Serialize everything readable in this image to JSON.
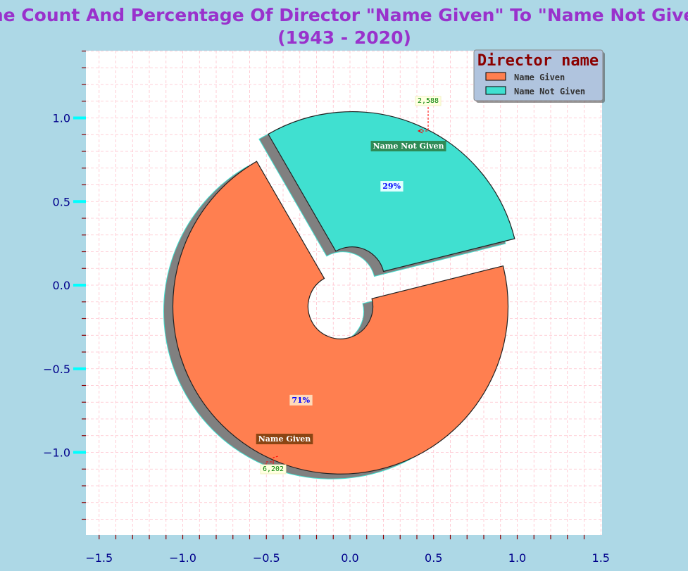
{
  "chart_data": {
    "type": "pie",
    "title_lines": [
      "The Count And Percentage Of Director \"Name Given\" To \"Name Not Given\"",
      "(1943 - 2020)"
    ],
    "legend": {
      "title": "Director name",
      "placement": "top-right"
    },
    "slices": [
      {
        "label": "Name Given",
        "value": 6202,
        "count_label": "6,202",
        "percent_label": "71%",
        "color": "#ff7f50"
      },
      {
        "label": "Name Not Given",
        "value": 2588,
        "count_label": "2,588",
        "percent_label": "29%",
        "color": "#40e0d0"
      }
    ],
    "donut_hole": true,
    "exploded": true,
    "shadow": true,
    "x_ticks": [
      "−1.5",
      "−1.0",
      "−0.5",
      "0.0",
      "0.5",
      "1.0",
      "1.5"
    ],
    "y_ticks": [
      "1.0",
      "0.5",
      "0.0",
      "−0.5",
      "−1.0"
    ],
    "grid": true,
    "colors": {
      "background": "#add8e6",
      "plot_background": "#ffffff",
      "grid": "#ffc0cb",
      "title": "#9932cc",
      "tick_mark": "#00ffff",
      "minor_tick": "#8b0000",
      "legend_background": "#b0c4de",
      "annotation_arrow": "#ff0000"
    }
  }
}
